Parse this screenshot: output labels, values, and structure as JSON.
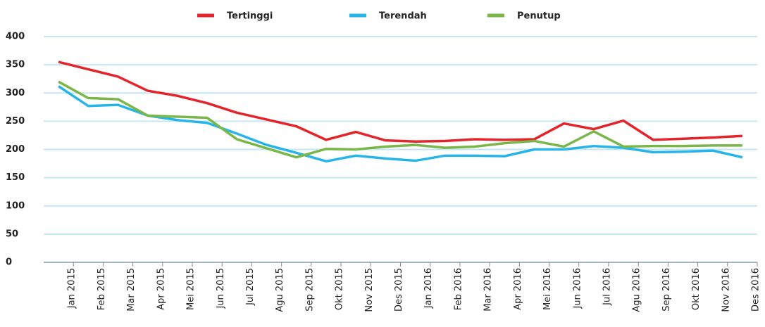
{
  "chart_data": {
    "type": "line",
    "categories": [
      "Jan 2015",
      "Feb 2015",
      "Mar 2015",
      "Apr 2015",
      "Mei 2015",
      "Jun 2015",
      "Jul 2015",
      "Agu 2015",
      "Sep 2015",
      "Okt 2015",
      "Nov 2015",
      "Des 2015",
      "Jan 2016",
      "Feb 2016",
      "Mar 2016",
      "Apr 2016",
      "Mei 2016",
      "Jun 2016",
      "Jul 2016",
      "Agu 2016",
      "Sep 2016",
      "Okt 2016",
      "Nov 2016",
      "Des 2016"
    ],
    "series": [
      {
        "name": "Tertinggi",
        "color": "#e3242b",
        "values": [
          355,
          342,
          329,
          304,
          295,
          282,
          265,
          253,
          241,
          217,
          231,
          216,
          214,
          215,
          218,
          217,
          218,
          246,
          236,
          251,
          217,
          219,
          221,
          224
        ]
      },
      {
        "name": "Terendah",
        "color": "#27b4e8",
        "values": [
          312,
          277,
          279,
          260,
          252,
          247,
          228,
          208,
          194,
          179,
          189,
          184,
          180,
          189,
          189,
          188,
          200,
          200,
          206,
          203,
          195,
          196,
          198,
          186
        ]
      },
      {
        "name": "Penutup",
        "color": "#7ab648",
        "values": [
          320,
          291,
          289,
          260,
          258,
          256,
          218,
          202,
          186,
          201,
          200,
          205,
          208,
          203,
          205,
          211,
          215,
          205,
          232,
          205,
          206,
          206,
          207,
          207
        ]
      }
    ],
    "ylim": [
      0,
      400
    ],
    "yticks": [
      0,
      50,
      100,
      150,
      200,
      250,
      300,
      350,
      400
    ],
    "grid": true,
    "legend": "top"
  }
}
